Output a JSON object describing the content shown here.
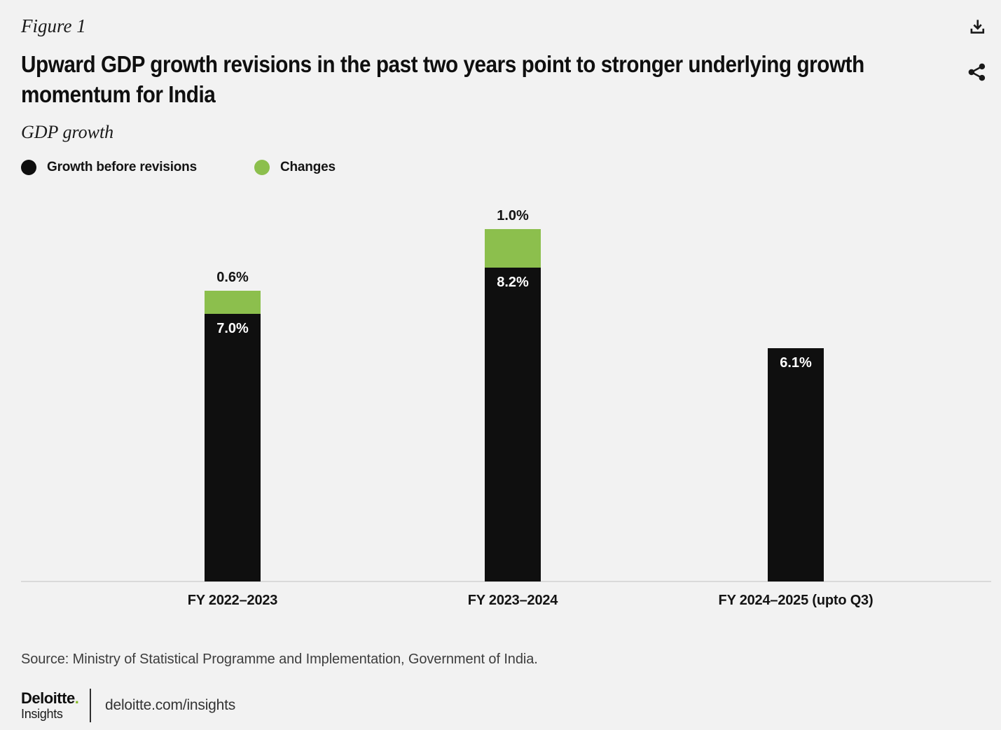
{
  "figure_label": "Figure 1",
  "title": "Upward GDP growth revisions in the past two years point to stronger underlying growth\nmomentum for India",
  "subtitle": "GDP growth",
  "legend": [
    {
      "label": "Growth before revisions",
      "color": "#0f0f0f"
    },
    {
      "label": "Changes",
      "color": "#8cbf4d"
    }
  ],
  "chart_data": {
    "type": "bar",
    "stacked": true,
    "categories": [
      "FY 2022–2023",
      "FY 2023–2024",
      "FY 2024–2025 (upto Q3)"
    ],
    "series": [
      {
        "name": "Growth before revisions",
        "color": "#0f0f0f",
        "values": [
          7.0,
          8.2,
          6.1
        ],
        "labels": [
          "7.0%",
          "8.2%",
          "6.1%"
        ]
      },
      {
        "name": "Changes",
        "color": "#8cbf4d",
        "values": [
          0.6,
          1.0,
          0
        ],
        "labels": [
          "0.6%",
          "1.0%",
          ""
        ]
      }
    ],
    "title": "Upward GDP growth revisions in the past two years point to stronger underlying growth momentum for India",
    "xlabel": "",
    "ylabel": "GDP growth",
    "ylim": [
      0,
      9.2
    ],
    "grid": false,
    "legend_position": "top-left",
    "value_suffix": "%"
  },
  "source": "Source: Ministry of Statistical Programme and Implementation, Government of India.",
  "footer": {
    "brand": "Deloitte",
    "brand_dot": ".",
    "brand_sub": "Insights",
    "link": "deloitte.com/insights"
  },
  "colors": {
    "background": "#f2f2f2",
    "bar_black": "#0f0f0f",
    "bar_green": "#8cbf4d",
    "brand_green": "#86bc25",
    "axis": "#dadada"
  }
}
